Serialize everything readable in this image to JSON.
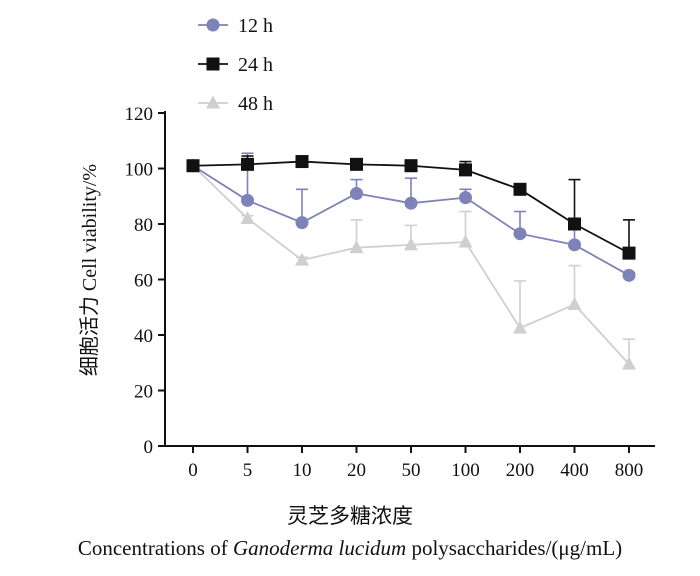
{
  "chart_data": {
    "type": "line",
    "categories": [
      "0",
      "5",
      "10",
      "20",
      "50",
      "100",
      "200",
      "400",
      "800"
    ],
    "series": [
      {
        "name": "12 h",
        "color": "#7d82b8",
        "marker": "circle",
        "values": [
          101,
          88.5,
          80.5,
          91,
          87.5,
          89.5,
          76.5,
          72.5,
          61.5
        ],
        "errors": [
          0,
          17,
          12,
          5,
          9,
          3,
          8,
          7,
          1
        ]
      },
      {
        "name": "24 h",
        "color": "#111111",
        "marker": "square",
        "values": [
          101,
          101.5,
          102.5,
          101.5,
          101,
          99.5,
          92.5,
          80,
          69.5
        ],
        "errors": [
          0,
          3,
          1,
          1,
          2,
          3,
          1,
          16,
          12
        ]
      },
      {
        "name": "48 h",
        "color": "#cfcfcf",
        "marker": "triangle",
        "values": [
          101,
          82,
          67,
          71.5,
          72.5,
          73.5,
          42.5,
          51,
          29.5
        ],
        "errors": [
          0,
          1,
          1,
          10,
          7,
          11,
          17,
          14,
          9
        ]
      }
    ],
    "ylabel_cn": "细胞活力",
    "ylabel_en": "Cell viability/%",
    "xlabel_cn": "灵芝多糖浓度",
    "xlabel_en_prefix": "Concentrations of ",
    "xlabel_en_italic": "Ganoderma lucidum",
    "xlabel_en_suffix": " polysaccharides/(μg/mL)",
    "ylim": [
      0,
      120
    ],
    "yticks": [
      0,
      20,
      40,
      60,
      80,
      100,
      120
    ],
    "grid": false,
    "legend_position": "top-left"
  }
}
